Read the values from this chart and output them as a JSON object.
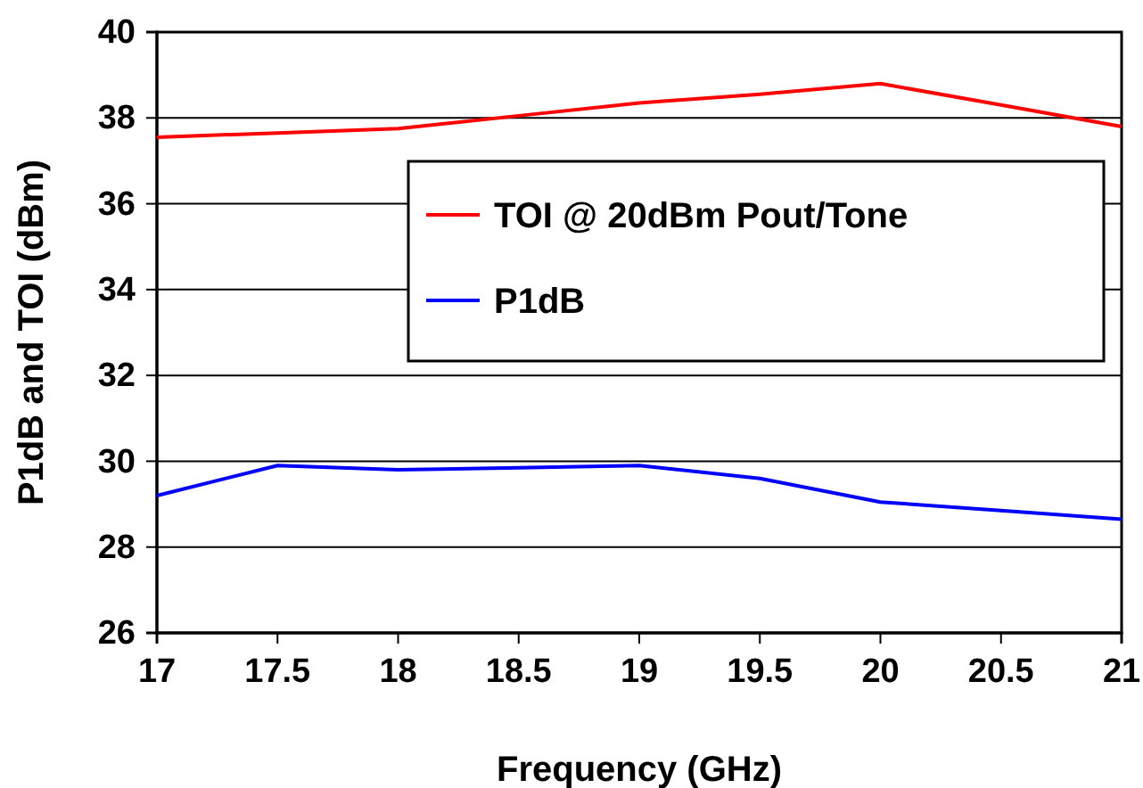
{
  "chart_data": {
    "type": "line",
    "xlabel": "Frequency (GHz)",
    "ylabel": "P1dB and TOI (dBm)",
    "x": [
      17,
      17.5,
      18,
      18.5,
      19,
      19.5,
      20,
      20.5,
      21
    ],
    "series": [
      {
        "name": "TOI @ 20dBm Pout/Tone",
        "color": "#ff0000",
        "values": [
          37.55,
          37.65,
          37.75,
          38.05,
          38.35,
          38.55,
          38.8,
          38.3,
          37.8
        ]
      },
      {
        "name": "P1dB",
        "color": "#0000ff",
        "values": [
          29.2,
          29.9,
          29.8,
          29.85,
          29.9,
          29.6,
          29.05,
          28.85,
          28.65
        ]
      }
    ],
    "xlim": [
      17,
      21
    ],
    "xticks": [
      17,
      17.5,
      18,
      18.5,
      19,
      19.5,
      20,
      20.5,
      21
    ],
    "ylim": [
      26,
      40
    ],
    "yticks": [
      26,
      28,
      30,
      32,
      34,
      36,
      38,
      40
    ],
    "grid": "y",
    "legend": "right",
    "marker": "none",
    "line_style": "solid"
  }
}
